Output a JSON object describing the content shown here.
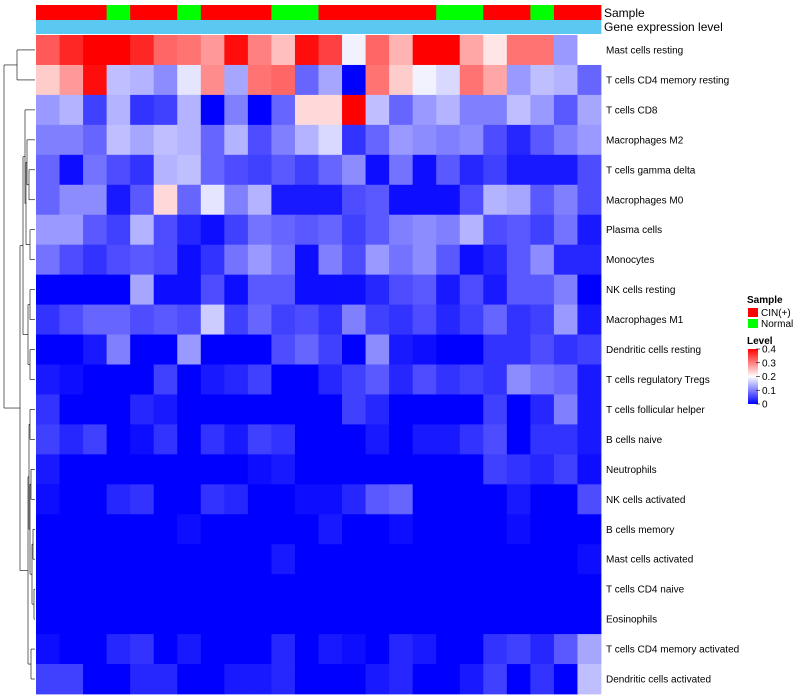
{
  "chart_data": {
    "type": "heatmap",
    "title": "",
    "xlabel": "",
    "ylabel": "",
    "column_annotations": [
      {
        "name": "Sample",
        "label": "Sample"
      },
      {
        "name": "Gene expression level",
        "label": "Gene expression level"
      }
    ],
    "samples": [
      "CIN(+)",
      "CIN(+)",
      "CIN(+)",
      "Normal",
      "CIN(+)",
      "CIN(+)",
      "Normal",
      "CIN(+)",
      "CIN(+)",
      "CIN(+)",
      "Normal",
      "Normal",
      "CIN(+)",
      "CIN(+)",
      "CIN(+)",
      "CIN(+)",
      "CIN(+)",
      "Normal",
      "Normal",
      "CIN(+)",
      "CIN(+)",
      "Normal",
      "CIN(+)",
      "CIN(+)"
    ],
    "rows": [
      "Mast cells resting",
      "T cells CD4 memory resting",
      "T cells CD8",
      "Macrophages M2",
      "T cells gamma delta",
      "Macrophages M0",
      "Plasma cells",
      "Monocytes",
      "NK cells resting",
      "Macrophages M1",
      "Dendritic cells resting",
      "T cells regulatory  Tregs",
      "T cells follicular helper",
      "B cells naive",
      "Neutrophils",
      "NK cells activated",
      "B cells memory",
      "Mast cells activated",
      "T cells CD4 naive",
      "Eosinophils",
      "T cells CD4 memory activated",
      "Dendritic cells activated"
    ],
    "values": [
      [
        0.33,
        0.37,
        0.4,
        0.4,
        0.37,
        0.32,
        0.31,
        0.28,
        0.39,
        0.3,
        0.25,
        0.39,
        0.35,
        0.19,
        0.32,
        0.26,
        0.4,
        0.4,
        0.27,
        0.22,
        0.31,
        0.31,
        0.12,
        0.2
      ],
      [
        0.24,
        0.28,
        0.39,
        0.15,
        0.14,
        0.11,
        0.18,
        0.29,
        0.13,
        0.31,
        0.32,
        0.08,
        0.13,
        0.0,
        0.31,
        0.24,
        0.19,
        0.17,
        0.31,
        0.27,
        0.12,
        0.15,
        0.14,
        0.08
      ],
      [
        0.12,
        0.14,
        0.05,
        0.14,
        0.04,
        0.05,
        0.14,
        0.0,
        0.1,
        0.0,
        0.08,
        0.23,
        0.23,
        0.4,
        0.15,
        0.08,
        0.12,
        0.14,
        0.1,
        0.1,
        0.15,
        0.12,
        0.07,
        0.13
      ],
      [
        0.1,
        0.1,
        0.08,
        0.15,
        0.13,
        0.15,
        0.14,
        0.08,
        0.14,
        0.06,
        0.1,
        0.14,
        0.17,
        0.04,
        0.08,
        0.12,
        0.11,
        0.1,
        0.11,
        0.06,
        0.03,
        0.07,
        0.1,
        0.12
      ],
      [
        0.08,
        0.01,
        0.09,
        0.06,
        0.04,
        0.14,
        0.15,
        0.08,
        0.06,
        0.05,
        0.07,
        0.05,
        0.08,
        0.11,
        0.01,
        0.09,
        0.01,
        0.07,
        0.03,
        0.05,
        0.02,
        0.02,
        0.02,
        0.06
      ],
      [
        0.08,
        0.11,
        0.11,
        0.02,
        0.07,
        0.23,
        0.08,
        0.18,
        0.1,
        0.14,
        0.02,
        0.02,
        0.02,
        0.06,
        0.07,
        0.01,
        0.01,
        0.01,
        0.06,
        0.14,
        0.13,
        0.07,
        0.1,
        0.06
      ],
      [
        0.12,
        0.12,
        0.07,
        0.05,
        0.14,
        0.06,
        0.03,
        0.01,
        0.05,
        0.09,
        0.08,
        0.07,
        0.08,
        0.05,
        0.07,
        0.1,
        0.11,
        0.1,
        0.14,
        0.06,
        0.07,
        0.05,
        0.09,
        0.02
      ],
      [
        0.09,
        0.06,
        0.04,
        0.06,
        0.07,
        0.06,
        0.01,
        0.04,
        0.09,
        0.12,
        0.09,
        0.01,
        0.1,
        0.06,
        0.12,
        0.09,
        0.11,
        0.07,
        0.01,
        0.03,
        0.07,
        0.11,
        0.03,
        0.03
      ],
      [
        0.0,
        0.0,
        0.0,
        0.0,
        0.13,
        0.01,
        0.01,
        0.06,
        0.01,
        0.07,
        0.07,
        0.01,
        0.01,
        0.01,
        0.03,
        0.06,
        0.07,
        0.02,
        0.06,
        0.02,
        0.07,
        0.07,
        0.1,
        0.0
      ],
      [
        0.04,
        0.06,
        0.08,
        0.08,
        0.06,
        0.07,
        0.06,
        0.16,
        0.05,
        0.08,
        0.05,
        0.06,
        0.04,
        0.1,
        0.05,
        0.04,
        0.06,
        0.03,
        0.05,
        0.08,
        0.04,
        0.05,
        0.12,
        0.02
      ],
      [
        0.0,
        0.0,
        0.02,
        0.1,
        0.0,
        0.0,
        0.12,
        0.0,
        0.0,
        0.0,
        0.06,
        0.08,
        0.05,
        0.0,
        0.11,
        0.02,
        0.01,
        0.0,
        0.0,
        0.04,
        0.04,
        0.06,
        0.04,
        0.05
      ],
      [
        0.02,
        0.01,
        0.0,
        0.0,
        0.0,
        0.05,
        0.0,
        0.02,
        0.03,
        0.05,
        0.0,
        0.0,
        0.03,
        0.05,
        0.07,
        0.03,
        0.06,
        0.04,
        0.05,
        0.04,
        0.11,
        0.09,
        0.08,
        0.02
      ],
      [
        0.04,
        0.0,
        0.0,
        0.0,
        0.03,
        0.02,
        0.0,
        0.0,
        0.0,
        0.0,
        0.0,
        0.0,
        0.0,
        0.05,
        0.03,
        0.0,
        0.0,
        0.0,
        0.0,
        0.05,
        0.0,
        0.03,
        0.1,
        0.02
      ],
      [
        0.05,
        0.03,
        0.05,
        0.0,
        0.01,
        0.04,
        0.0,
        0.04,
        0.02,
        0.05,
        0.04,
        0.0,
        0.0,
        0.0,
        0.02,
        0.0,
        0.02,
        0.02,
        0.04,
        0.06,
        0.0,
        0.04,
        0.04,
        0.02
      ],
      [
        0.02,
        0.0,
        0.0,
        0.0,
        0.0,
        0.0,
        0.0,
        0.0,
        0.0,
        0.01,
        0.02,
        0.0,
        0.0,
        0.0,
        0.0,
        0.0,
        0.0,
        0.0,
        0.0,
        0.05,
        0.04,
        0.03,
        0.05,
        0.01
      ],
      [
        0.01,
        0.0,
        0.0,
        0.03,
        0.04,
        0.0,
        0.0,
        0.04,
        0.03,
        0.0,
        0.0,
        0.01,
        0.01,
        0.03,
        0.07,
        0.08,
        0.0,
        0.0,
        0.0,
        0.0,
        0.02,
        0.0,
        0.0,
        0.06
      ],
      [
        0.0,
        0.0,
        0.0,
        0.0,
        0.0,
        0.0,
        0.01,
        0.0,
        0.0,
        0.0,
        0.0,
        0.0,
        0.02,
        0.0,
        0.0,
        0.01,
        0.0,
        0.0,
        0.0,
        0.0,
        0.01,
        0.0,
        0.0,
        0.0
      ],
      [
        0.0,
        0.0,
        0.0,
        0.0,
        0.0,
        0.0,
        0.0,
        0.0,
        0.0,
        0.0,
        0.02,
        0.0,
        0.0,
        0.0,
        0.0,
        0.0,
        0.0,
        0.0,
        0.0,
        0.0,
        0.0,
        0.0,
        0.0,
        0.01
      ],
      [
        0.0,
        0.0,
        0.0,
        0.0,
        0.0,
        0.0,
        0.0,
        0.0,
        0.0,
        0.0,
        0.0,
        0.0,
        0.0,
        0.0,
        0.0,
        0.0,
        0.0,
        0.0,
        0.0,
        0.0,
        0.0,
        0.0,
        0.0,
        0.0
      ],
      [
        0.0,
        0.0,
        0.0,
        0.0,
        0.0,
        0.0,
        0.0,
        0.0,
        0.0,
        0.0,
        0.0,
        0.0,
        0.0,
        0.0,
        0.0,
        0.0,
        0.0,
        0.0,
        0.0,
        0.0,
        0.0,
        0.0,
        0.0,
        0.0
      ],
      [
        0.01,
        0.0,
        0.0,
        0.03,
        0.04,
        0.0,
        0.02,
        0.0,
        0.0,
        0.0,
        0.03,
        0.0,
        0.02,
        0.01,
        0.0,
        0.03,
        0.02,
        0.0,
        0.0,
        0.04,
        0.05,
        0.03,
        0.07,
        0.13
      ],
      [
        0.05,
        0.05,
        0.0,
        0.0,
        0.03,
        0.03,
        0.0,
        0.0,
        0.02,
        0.02,
        0.03,
        0.0,
        0.0,
        0.0,
        0.02,
        0.03,
        0.0,
        0.0,
        0.02,
        0.05,
        0.0,
        0.04,
        0.0,
        0.15
      ]
    ],
    "legend": {
      "sample_title": "Sample",
      "sample_items": [
        {
          "label": "CIN(+)",
          "color": "#ff0000"
        },
        {
          "label": "Normal",
          "color": "#00ff00"
        }
      ],
      "level_title": "Level",
      "level_ticks": [
        0.4,
        0.3,
        0.2,
        0.1,
        0
      ],
      "level_range": [
        0,
        0.4
      ],
      "colors": {
        "low": "#0000ff",
        "mid": "#ffffff",
        "high": "#ff0000"
      }
    },
    "expression_bar_color": "#5ac8f0"
  }
}
